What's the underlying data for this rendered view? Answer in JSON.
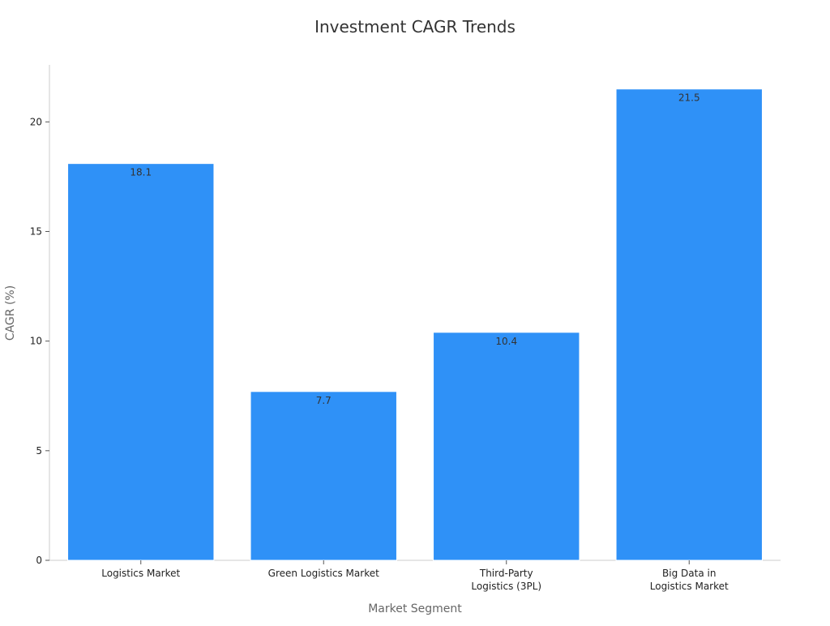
{
  "chart_data": {
    "type": "bar",
    "title": "Investment CAGR Trends",
    "xlabel": "Market Segment",
    "ylabel": "CAGR (%)",
    "categories": [
      [
        "Logistics Market"
      ],
      [
        "Green Logistics Market"
      ],
      [
        "Third-Party",
        "Logistics (3PL)"
      ],
      [
        "Big Data in",
        "Logistics Market"
      ]
    ],
    "values": [
      18.1,
      7.7,
      10.4,
      21.5
    ],
    "data_labels": [
      "18.1",
      "7.7",
      "10.4",
      "21.5"
    ],
    "yticks": [
      0,
      5,
      10,
      15,
      20
    ],
    "ylim": [
      0,
      22.6
    ],
    "grid": false,
    "legend": "none",
    "colors": {
      "bar": "#2f91f7",
      "bar_edge": "#ffffff"
    }
  }
}
